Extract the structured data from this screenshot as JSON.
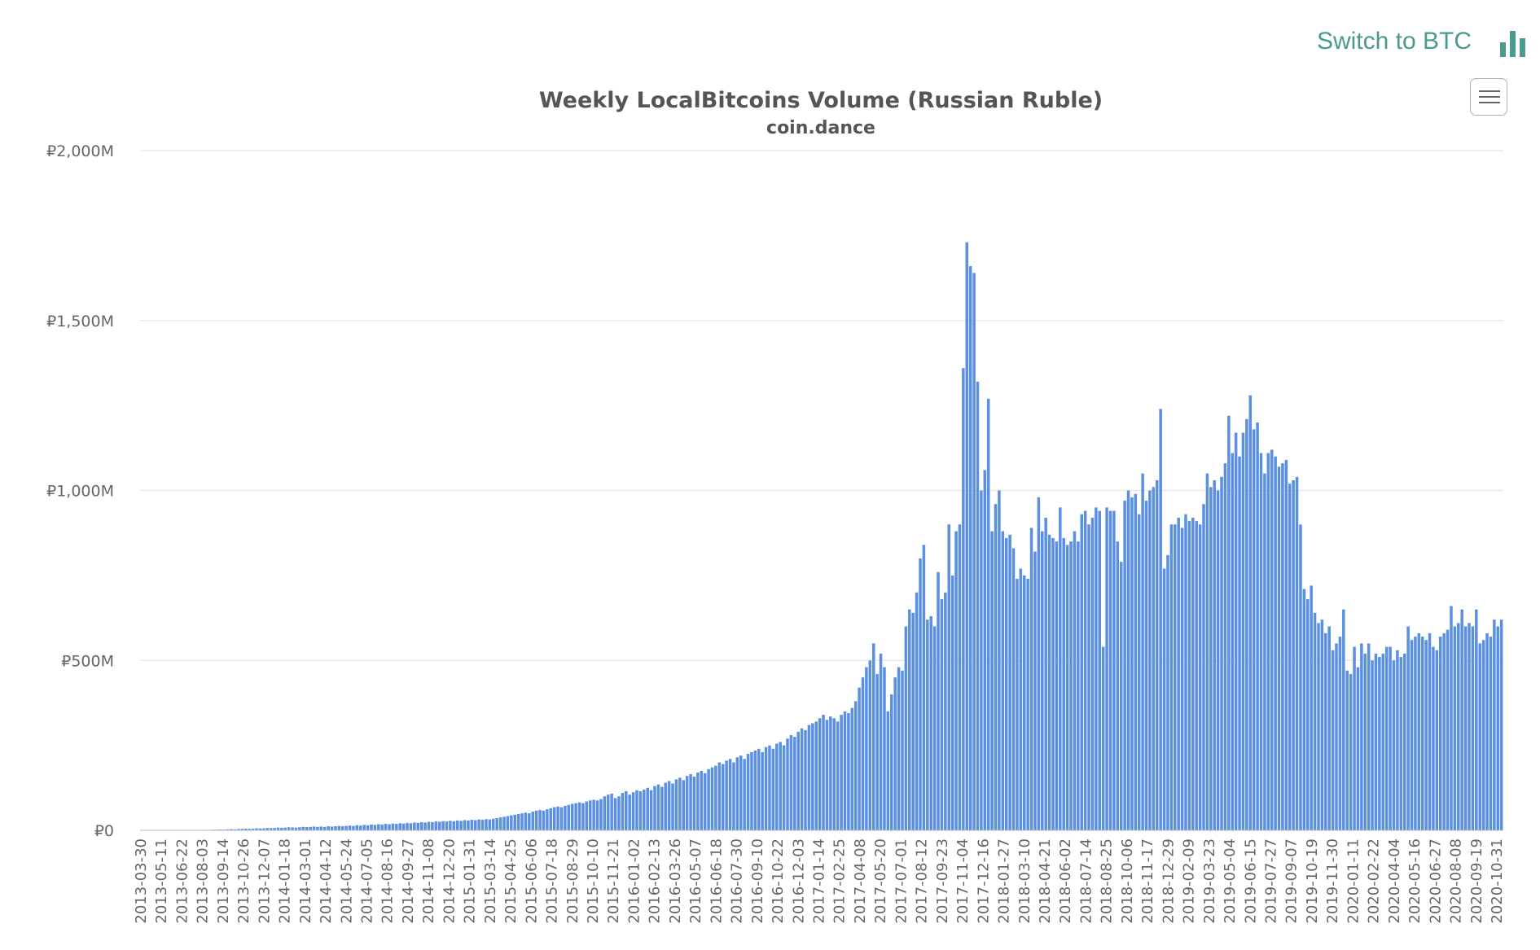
{
  "header": {
    "switch_label": "Switch to BTC",
    "switch_icon": "bar-chart-icon",
    "menu_icon": "hamburger-menu-icon"
  },
  "colors": {
    "bar": "#5b8fe0",
    "accent": "#4a9a8e",
    "grid": "#e6e6e6",
    "text": "#666666"
  },
  "chart_data": {
    "type": "bar",
    "title": "Weekly LocalBitcoins Volume (Russian Ruble)",
    "subtitle": "coin.dance",
    "xlabel": "",
    "ylabel": "",
    "ylim": [
      0,
      2000
    ],
    "unit": "M RUB",
    "y_ticks": [
      {
        "value": 0,
        "label": "₽0"
      },
      {
        "value": 500,
        "label": "₽500M"
      },
      {
        "value": 1000,
        "label": "₽1,000M"
      },
      {
        "value": 1500,
        "label": "₽1,500M"
      },
      {
        "value": 2000,
        "label": "₽2,000M"
      }
    ],
    "grid": true,
    "legend": false,
    "x_tick_labels": [
      "2013-03-30",
      "2013-05-11",
      "2013-06-22",
      "2013-08-03",
      "2013-09-14",
      "2013-10-26",
      "2013-12-07",
      "2014-01-18",
      "2014-03-01",
      "2014-04-12",
      "2014-05-24",
      "2014-07-05",
      "2014-08-16",
      "2014-09-27",
      "2014-11-08",
      "2014-12-20",
      "2015-01-31",
      "2015-03-14",
      "2015-04-25",
      "2015-06-06",
      "2015-07-18",
      "2015-08-29",
      "2015-10-10",
      "2015-11-21",
      "2016-01-02",
      "2016-02-13",
      "2016-03-26",
      "2016-05-07",
      "2016-06-18",
      "2016-07-30",
      "2016-09-10",
      "2016-10-22",
      "2016-12-03",
      "2017-01-14",
      "2017-02-25",
      "2017-04-08",
      "2017-05-20",
      "2017-07-01",
      "2017-08-12",
      "2017-09-23",
      "2017-11-04",
      "2017-12-16",
      "2018-01-27",
      "2018-03-10",
      "2018-04-21",
      "2018-06-02",
      "2018-07-14",
      "2018-08-25",
      "2018-10-06",
      "2018-11-17",
      "2018-12-29",
      "2019-02-09",
      "2019-03-23",
      "2019-05-04",
      "2019-06-15",
      "2019-07-27",
      "2019-09-07",
      "2019-10-19",
      "2019-11-30",
      "2020-01-11",
      "2020-02-22",
      "2020-04-04",
      "2020-05-16",
      "2020-06-27",
      "2020-08-08",
      "2020-09-19",
      "2020-10-31"
    ],
    "segments": [
      [
        0,
        0.05,
        0.1,
        0.05,
        0.1,
        0.2,
        0.1,
        0.2,
        0.3,
        0.2,
        0.3,
        0.5,
        0.4,
        0.6,
        0.8,
        0.7,
        1.0,
        1.2,
        1.5,
        1.3,
        1.8,
        2,
        2.5,
        2.2,
        3,
        3.5,
        3,
        4,
        4.5,
        5,
        4.5,
        5,
        6,
        5.5,
        6,
        7,
        6.5,
        7,
        8,
        7.5,
        8,
        9,
        8.5,
        8,
        9,
        10,
        9.5,
        10,
        11,
        10
      ],
      [
        10,
        11,
        10,
        12,
        11,
        12,
        13,
        12,
        13,
        14,
        13,
        15,
        14,
        16,
        15,
        17,
        16,
        18,
        17,
        19,
        18,
        20,
        19,
        21,
        20,
        22,
        21,
        23,
        22,
        24,
        23,
        25,
        24,
        26,
        25,
        27,
        26,
        28,
        27,
        29,
        28,
        30,
        29,
        31,
        30,
        32,
        31,
        33,
        32,
        34
      ],
      [
        34,
        36,
        38,
        40,
        42,
        44,
        46,
        48,
        50,
        52,
        50,
        55,
        58,
        60,
        58,
        62,
        65,
        68,
        70,
        68,
        72,
        75,
        78,
        80,
        82,
        80,
        85,
        88,
        90,
        88,
        92
      ],
      [
        92,
        100,
        105,
        108,
        95,
        100,
        110,
        115,
        105,
        112,
        118,
        115,
        120,
        125,
        118,
        130,
        135,
        128,
        140,
        145,
        138,
        150,
        155,
        148,
        160,
        165,
        158,
        170,
        175,
        168,
        180
      ],
      [
        180,
        185,
        190,
        200,
        195,
        205,
        210,
        200,
        215,
        220,
        210,
        225,
        230,
        235,
        240,
        230,
        245,
        250,
        240,
        255,
        260,
        250,
        270
      ],
      [
        270,
        280,
        275,
        290,
        300,
        295,
        310,
        315,
        320,
        330,
        340,
        325,
        335,
        330,
        320,
        340,
        350,
        345,
        360,
        380,
        420,
        450,
        480,
        500,
        550,
        460,
        520,
        480,
        350
      ],
      [
        350,
        400,
        450,
        480,
        470,
        600,
        650,
        640,
        700,
        800,
        840,
        620,
        630,
        600,
        760,
        680,
        700,
        900,
        750,
        880,
        900
      ],
      [
        900,
        1360,
        1730,
        1660,
        1640,
        1320,
        1000,
        1060,
        1270,
        880,
        960,
        1000,
        880,
        860,
        870,
        830,
        740,
        770,
        750,
        740,
        890,
        820,
        980,
        880,
        920,
        870,
        860,
        850,
        950,
        860,
        840,
        850,
        880,
        850,
        930,
        940,
        900,
        920,
        950,
        940,
        540
      ],
      [
        540,
        950,
        940,
        940,
        850,
        790,
        970,
        1000,
        980,
        990,
        930,
        1050,
        970,
        1000,
        1010,
        1030,
        1240,
        770,
        810,
        900,
        900,
        920,
        890,
        930,
        910,
        920,
        910,
        900
      ],
      [
        900,
        960,
        1050,
        1010,
        1030,
        1000,
        1040,
        1080,
        1220,
        1110,
        1170,
        1100,
        1170,
        1210,
        1280,
        1180,
        1200,
        1110,
        1050,
        1110,
        1120,
        1100,
        1070,
        1080,
        1090,
        1020,
        1030,
        1040,
        900
      ],
      [
        900,
        710,
        680,
        720,
        640,
        610,
        620,
        580,
        600,
        530,
        550,
        570,
        650,
        470,
        460,
        540,
        480,
        550,
        520,
        550,
        500,
        520,
        510,
        520,
        540,
        540,
        500,
        530,
        510,
        520,
        600
      ],
      [
        600,
        560,
        570,
        580,
        570,
        560,
        580,
        540,
        530,
        570,
        580,
        590,
        660,
        600,
        610,
        650,
        600,
        610,
        600,
        650,
        550,
        560,
        580,
        570,
        620,
        600,
        620
      ]
    ]
  }
}
